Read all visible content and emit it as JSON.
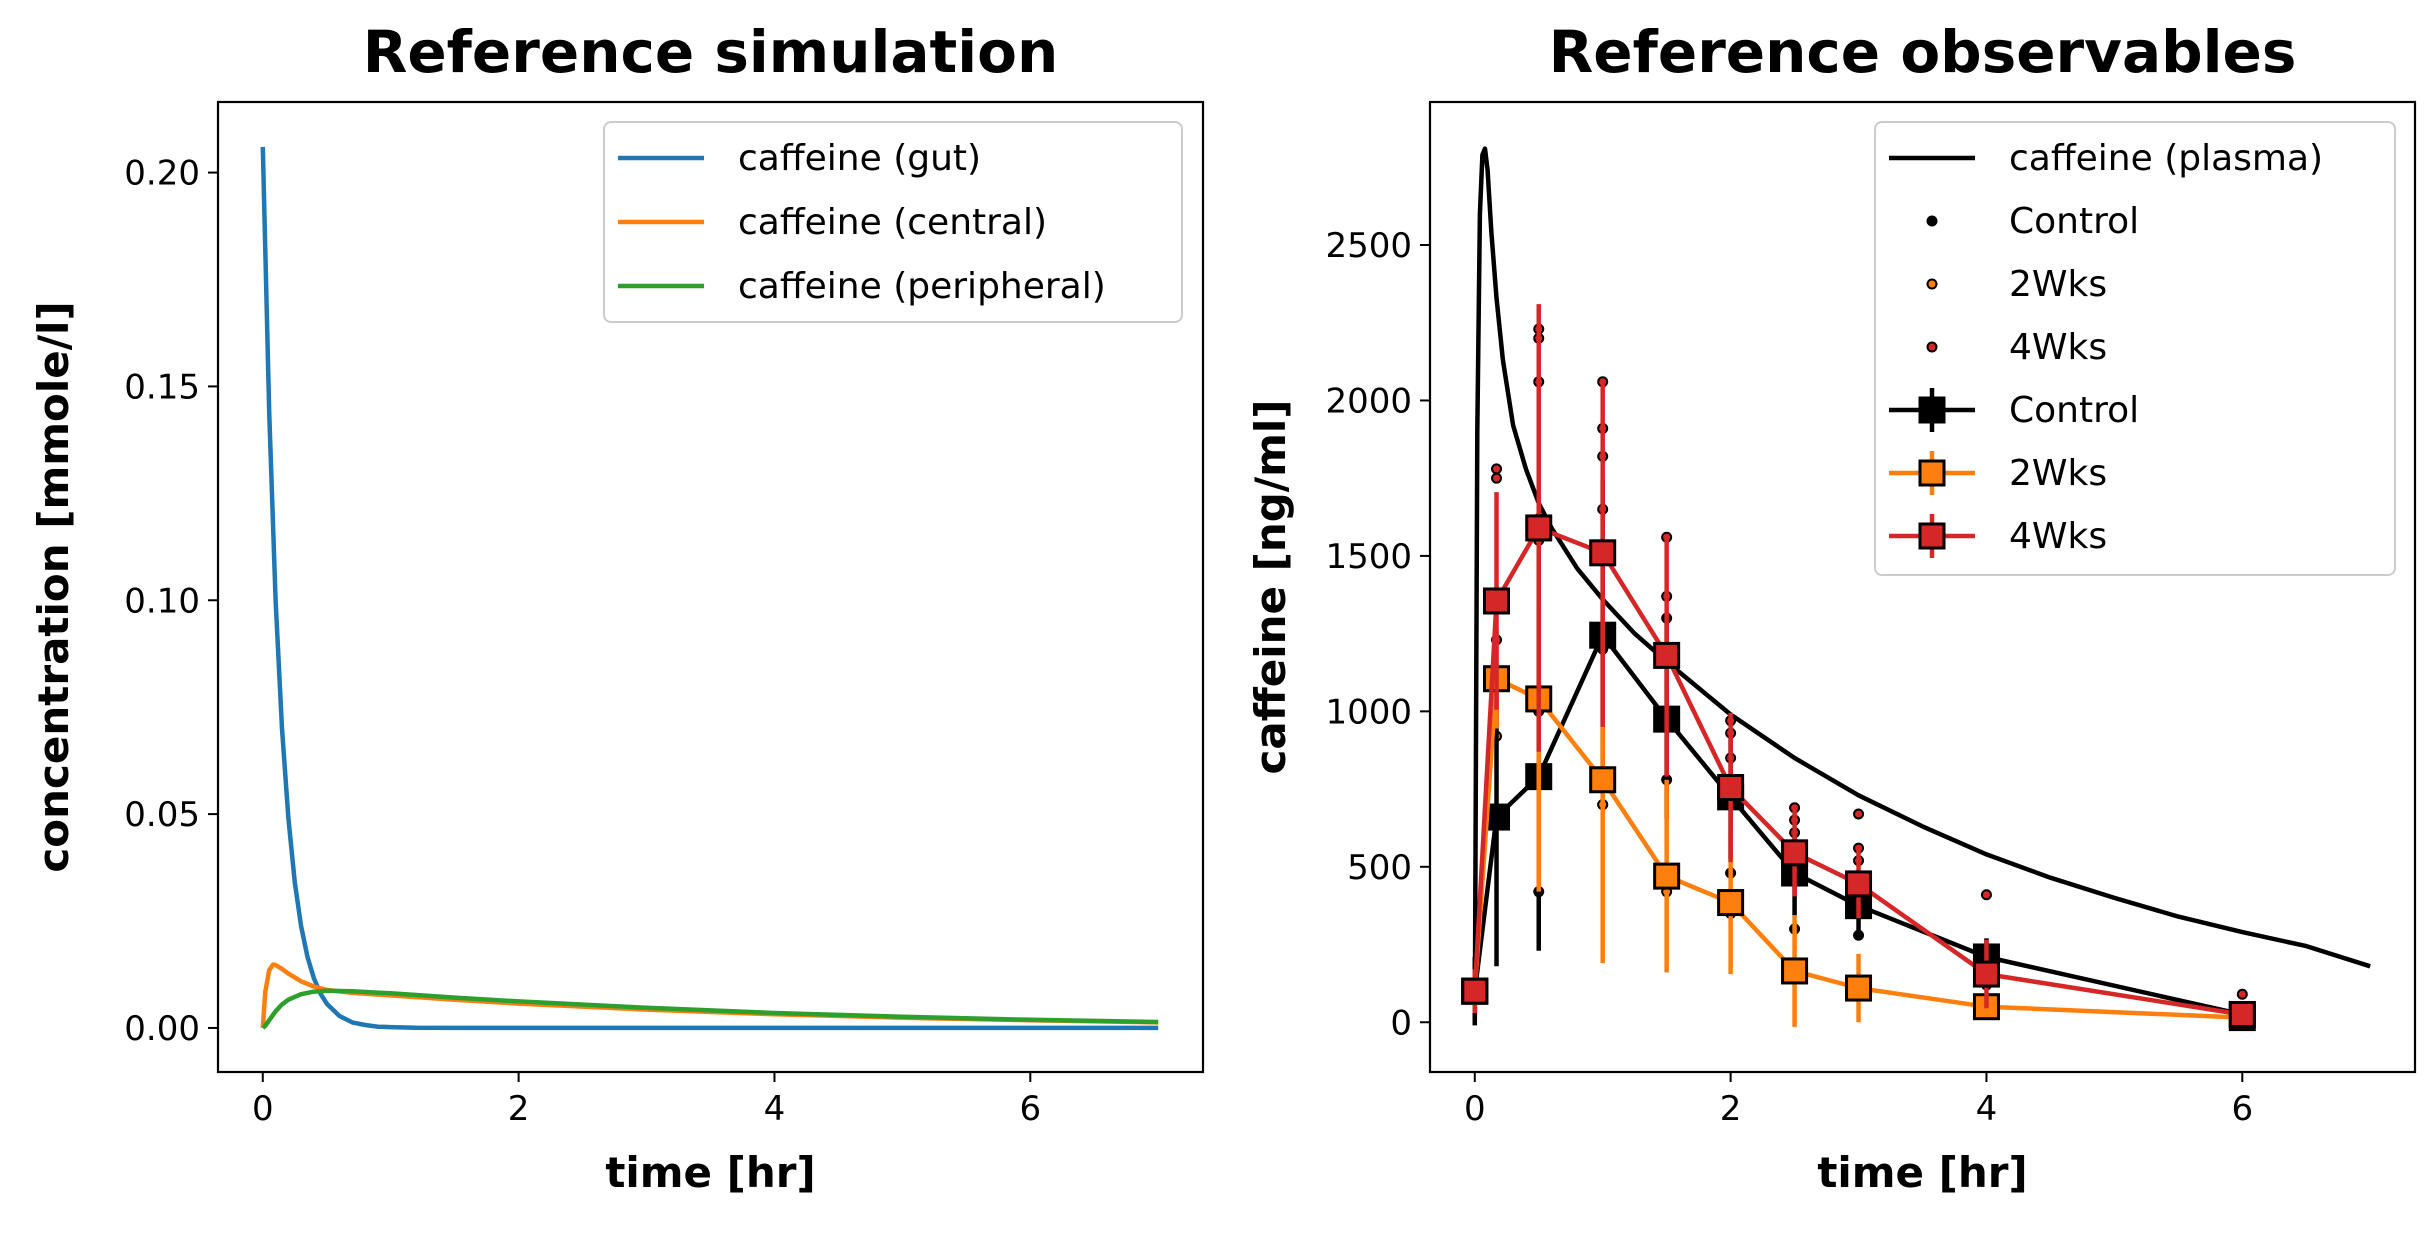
{
  "chart_data": [
    {
      "type": "line",
      "title": "Reference simulation",
      "xlabel": "time [hr]",
      "ylabel": "concentration [mmole/l]",
      "xlim": [
        -0.35,
        7.35
      ],
      "ylim": [
        -0.0103,
        0.2165
      ],
      "xticks": [
        0,
        2,
        4,
        6
      ],
      "yticks": [
        0.0,
        0.05,
        0.1,
        0.15,
        0.2
      ],
      "ytick_labels": [
        "0.00",
        "0.05",
        "0.10",
        "0.15",
        "0.20"
      ],
      "legend_position": "top-right",
      "grid": false,
      "series": [
        {
          "name": "caffeine (gut)",
          "color": "#1f77b4",
          "x": [
            0,
            0.05,
            0.1,
            0.15,
            0.2,
            0.25,
            0.3,
            0.35,
            0.4,
            0.45,
            0.5,
            0.6,
            0.7,
            0.8,
            0.9,
            1.0,
            1.2,
            1.5,
            2.0,
            3.0,
            4.0,
            5.0,
            6.0,
            7.0
          ],
          "y": [
            0.206,
            0.144,
            0.1,
            0.07,
            0.049,
            0.034,
            0.0238,
            0.0166,
            0.0116,
            0.0081,
            0.0057,
            0.0028,
            0.0013,
            0.0007,
            0.0003,
            0.0002,
            4e-05,
            0.0,
            0.0,
            0.0,
            0.0,
            0.0,
            0.0,
            0.0
          ]
        },
        {
          "name": "caffeine (central)",
          "color": "#ff7f0e",
          "x": [
            0,
            0.02,
            0.05,
            0.08,
            0.1,
            0.15,
            0.2,
            0.3,
            0.4,
            0.5,
            0.7,
            1.0,
            1.5,
            2.0,
            3.0,
            4.0,
            5.0,
            6.0,
            7.0
          ],
          "y": [
            0.0,
            0.0085,
            0.0135,
            0.0148,
            0.0147,
            0.0138,
            0.0127,
            0.0109,
            0.0097,
            0.0089,
            0.0082,
            0.0076,
            0.0066,
            0.0057,
            0.0043,
            0.0032,
            0.0024,
            0.0018,
            0.0013
          ]
        },
        {
          "name": "caffeine (peripheral)",
          "color": "#2ca02c",
          "x": [
            0,
            0.02,
            0.05,
            0.1,
            0.15,
            0.2,
            0.3,
            0.4,
            0.5,
            0.7,
            1.0,
            1.5,
            2.0,
            3.0,
            4.0,
            5.0,
            6.0,
            7.0
          ],
          "y": [
            0.0,
            0.0005,
            0.0018,
            0.0039,
            0.0055,
            0.0066,
            0.0079,
            0.0085,
            0.0087,
            0.0086,
            0.0081,
            0.0071,
            0.0062,
            0.0047,
            0.0035,
            0.0026,
            0.0019,
            0.0014
          ]
        }
      ]
    },
    {
      "type": "line",
      "title": "Reference observables",
      "xlabel": "time [hr]",
      "ylabel": "caffeine [ng/ml]",
      "xlim": [
        -0.35,
        7.35
      ],
      "ylim": [
        -160,
        2960
      ],
      "xticks": [
        0,
        2,
        4,
        6
      ],
      "yticks": [
        0,
        500,
        1000,
        1500,
        2000,
        2500
      ],
      "legend_position": "top-right",
      "grid": false,
      "series": [
        {
          "name": "caffeine (plasma)",
          "kind": "line",
          "color": "#000000",
          "x": [
            0,
            0.02,
            0.04,
            0.06,
            0.08,
            0.1,
            0.13,
            0.17,
            0.22,
            0.3,
            0.4,
            0.5,
            0.6,
            0.8,
            1.0,
            1.25,
            1.5,
            2.0,
            2.5,
            3.0,
            3.5,
            4.0,
            4.5,
            5.0,
            5.5,
            6.0,
            6.5,
            7.0
          ],
          "y": [
            0,
            1900,
            2600,
            2790,
            2810,
            2740,
            2540,
            2330,
            2130,
            1920,
            1780,
            1670,
            1590,
            1460,
            1360,
            1250,
            1160,
            990,
            850,
            730,
            630,
            540,
            465,
            400,
            340,
            290,
            245,
            180
          ]
        },
        {
          "name": "Control",
          "kind": "points",
          "color": "#000000",
          "x": [
            0.5,
            0.5,
            1.0,
            1.0,
            1.5,
            1.5,
            2.0,
            2.5,
            3.0,
            4.0,
            6.0
          ],
          "y": [
            420,
            1000,
            1200,
            700,
            1300,
            780,
            480,
            300,
            280,
            120,
            30
          ]
        },
        {
          "name": "2Wks",
          "kind": "points",
          "color": "#ff7f0e",
          "x": [
            0.17,
            0.17,
            0.5,
            0.5,
            1.0,
            1.5,
            2.0,
            2.5,
            3.0
          ],
          "y": [
            1100,
            920,
            1050,
            1020,
            700,
            420,
            350,
            140,
            100
          ]
        },
        {
          "name": "4Wks",
          "kind": "points",
          "color": "#d62728",
          "x": [
            0.17,
            0.17,
            0.17,
            0.5,
            0.5,
            0.5,
            0.5,
            0.5,
            1.0,
            1.0,
            1.0,
            1.0,
            1.5,
            1.5,
            1.5,
            2.0,
            2.0,
            2.0,
            2.5,
            2.5,
            2.5,
            2.5,
            3.0,
            3.0,
            3.0,
            4.0,
            6.0
          ],
          "y": [
            1780,
            1750,
            1230,
            2230,
            2200,
            2060,
            1620,
            1550,
            2060,
            1910,
            1820,
            1650,
            1560,
            1370,
            1200,
            970,
            930,
            850,
            690,
            650,
            610,
            550,
            670,
            560,
            520,
            410,
            90
          ]
        },
        {
          "name": "Control",
          "kind": "mean",
          "color": "#000000",
          "x": [
            0,
            0.17,
            0.5,
            1.0,
            1.5,
            2.0,
            2.5,
            3.0,
            4.0,
            6.0
          ],
          "y": [
            100,
            660,
            790,
            1245,
            975,
            725,
            480,
            375,
            210,
            25
          ],
          "err": [
            110,
            480,
            560,
            500,
            320,
            200,
            140,
            100,
            60,
            10
          ]
        },
        {
          "name": "2Wks",
          "kind": "mean",
          "color": "#ff7f0e",
          "x": [
            0,
            0.17,
            0.5,
            1.0,
            1.5,
            2.0,
            2.5,
            3.0,
            4.0,
            6.0
          ],
          "y": [
            100,
            1105,
            1040,
            780,
            470,
            385,
            165,
            110,
            50,
            15
          ],
          "err": [
            70,
            160,
            620,
            590,
            310,
            230,
            180,
            110,
            40,
            10
          ]
        },
        {
          "name": "4Wks",
          "kind": "mean",
          "color": "#d62728",
          "x": [
            0,
            0.17,
            0.5,
            1.0,
            1.5,
            2.0,
            2.5,
            3.0,
            4.0,
            6.0
          ],
          "y": [
            100,
            1355,
            1590,
            1510,
            1180,
            755,
            545,
            445,
            155,
            25
          ],
          "err": [
            70,
            350,
            720,
            560,
            390,
            240,
            140,
            110,
            110,
            25
          ]
        }
      ]
    }
  ]
}
